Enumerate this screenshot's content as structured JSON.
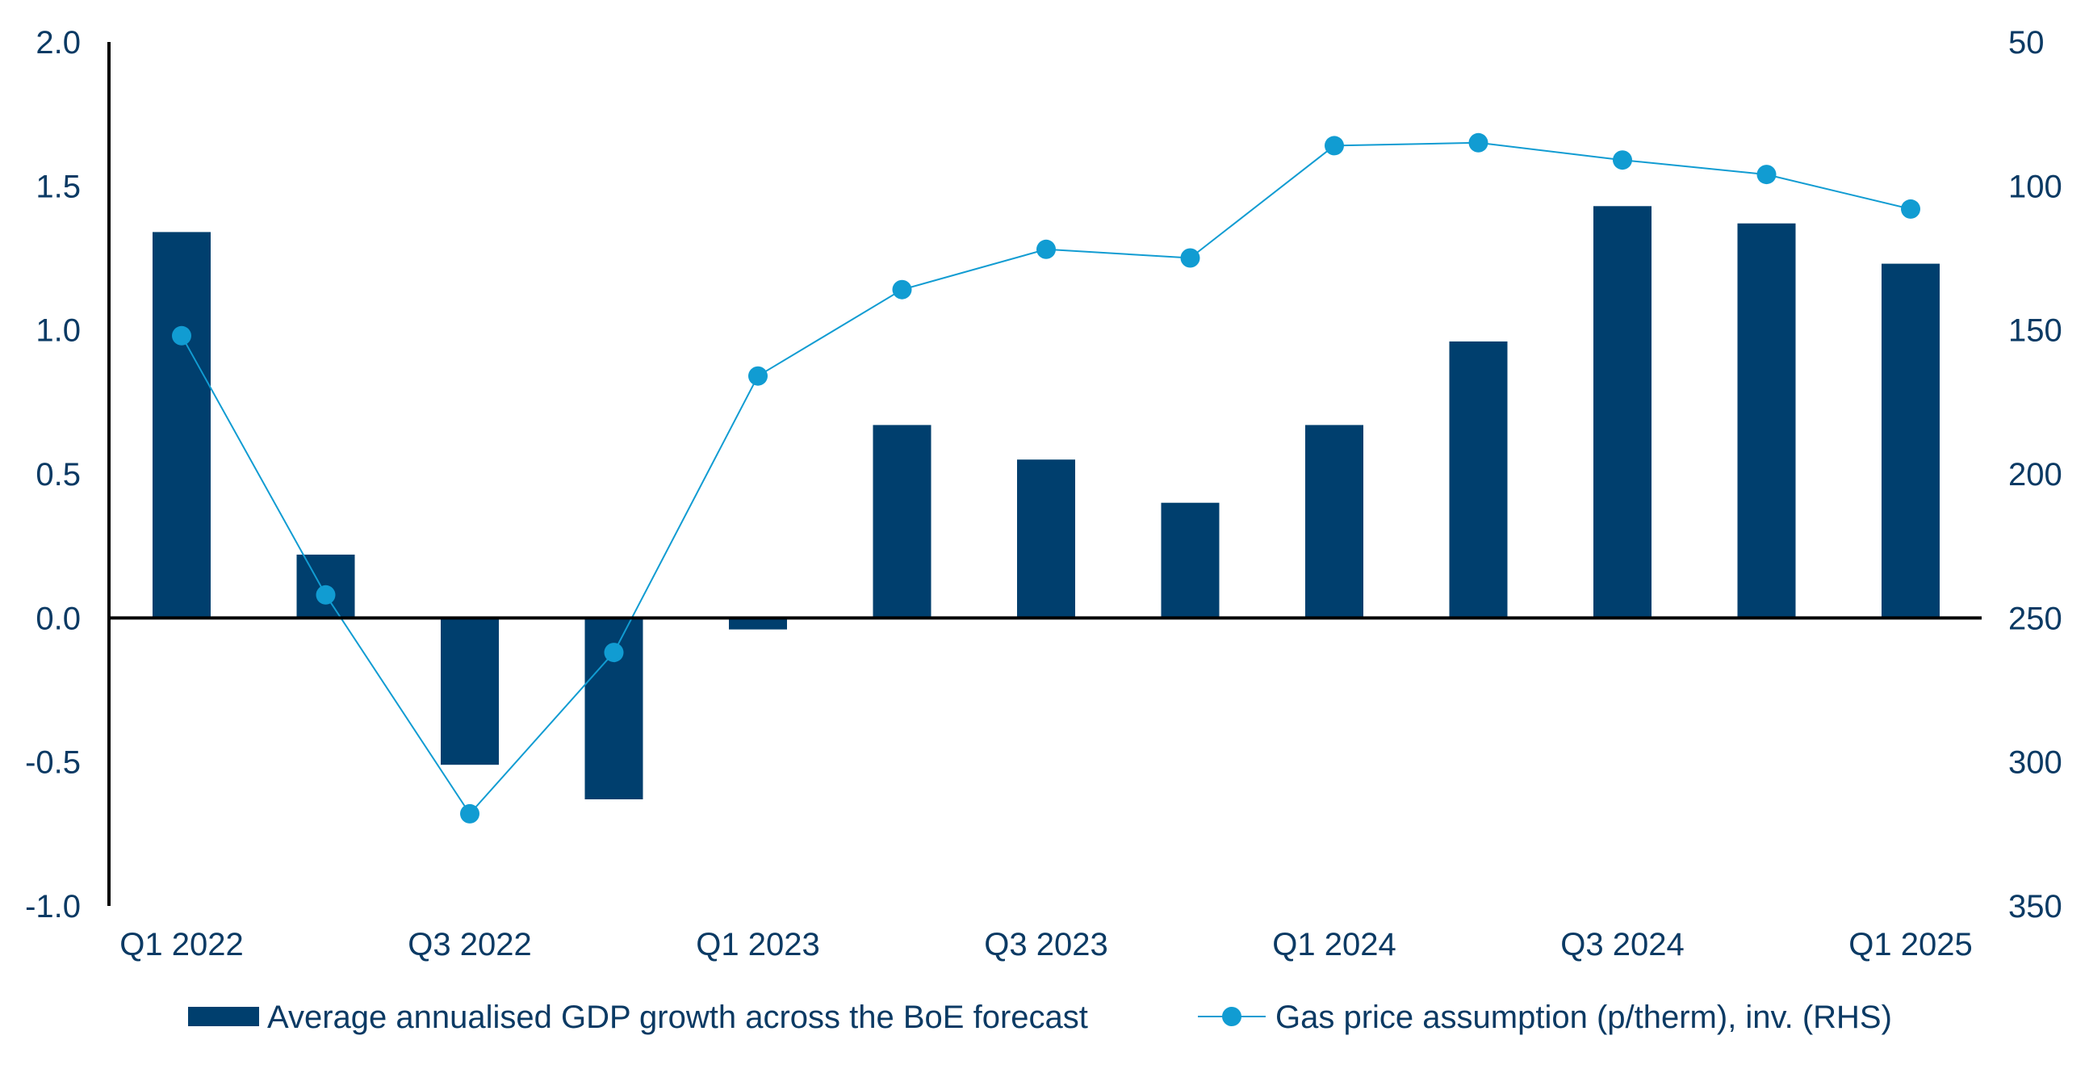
{
  "chart_data": {
    "type": "bar+line",
    "title": "",
    "categories": [
      "Q1 2022",
      "Q2 2022",
      "Q3 2022",
      "Q4 2022",
      "Q1 2023",
      "Q2 2023",
      "Q3 2023",
      "Q4 2023",
      "Q1 2024",
      "Q2 2024",
      "Q3 2024",
      "Q4 2024",
      "Q1 2025"
    ],
    "x_tick_labels": [
      "Q1 2022",
      "Q3 2022",
      "Q1 2023",
      "Q3 2023",
      "Q1 2024",
      "Q3 2024",
      "Q1 2025"
    ],
    "left_axis": {
      "ylim": [
        -1.0,
        2.0
      ],
      "ticks": [
        -1.0,
        -0.5,
        0.0,
        0.5,
        1.0,
        1.5,
        2.0
      ],
      "tick_labels": [
        "-1.0",
        "-0.5",
        "0.0",
        "0.5",
        "1.0",
        "1.5",
        "2.0"
      ]
    },
    "right_axis": {
      "inverted": true,
      "ylim": [
        50,
        350
      ],
      "ticks": [
        50,
        100,
        150,
        200,
        250,
        300,
        350
      ],
      "tick_labels": [
        "50",
        "100",
        "150",
        "200",
        "250",
        "300",
        "350"
      ]
    },
    "series": [
      {
        "name": "Average annualised GDP growth across the BoE forecast",
        "type": "bar",
        "axis": "left",
        "color": "#003f6e",
        "values": [
          1.34,
          0.22,
          -0.51,
          -0.63,
          -0.04,
          0.67,
          0.55,
          0.4,
          0.67,
          0.96,
          1.43,
          1.37,
          1.23
        ]
      },
      {
        "name": "Gas price assumption (p/therm), inv. (RHS)",
        "type": "line",
        "axis": "right",
        "color": "#119cd2",
        "values": [
          152,
          242,
          318,
          262,
          166,
          136,
          122,
          125,
          86,
          85,
          91,
          96,
          108
        ]
      }
    ],
    "legend_position": "bottom"
  },
  "colors": {
    "axis": "#000000",
    "tick_text": "#0b3a64",
    "legend_text": "#0b3a64"
  }
}
